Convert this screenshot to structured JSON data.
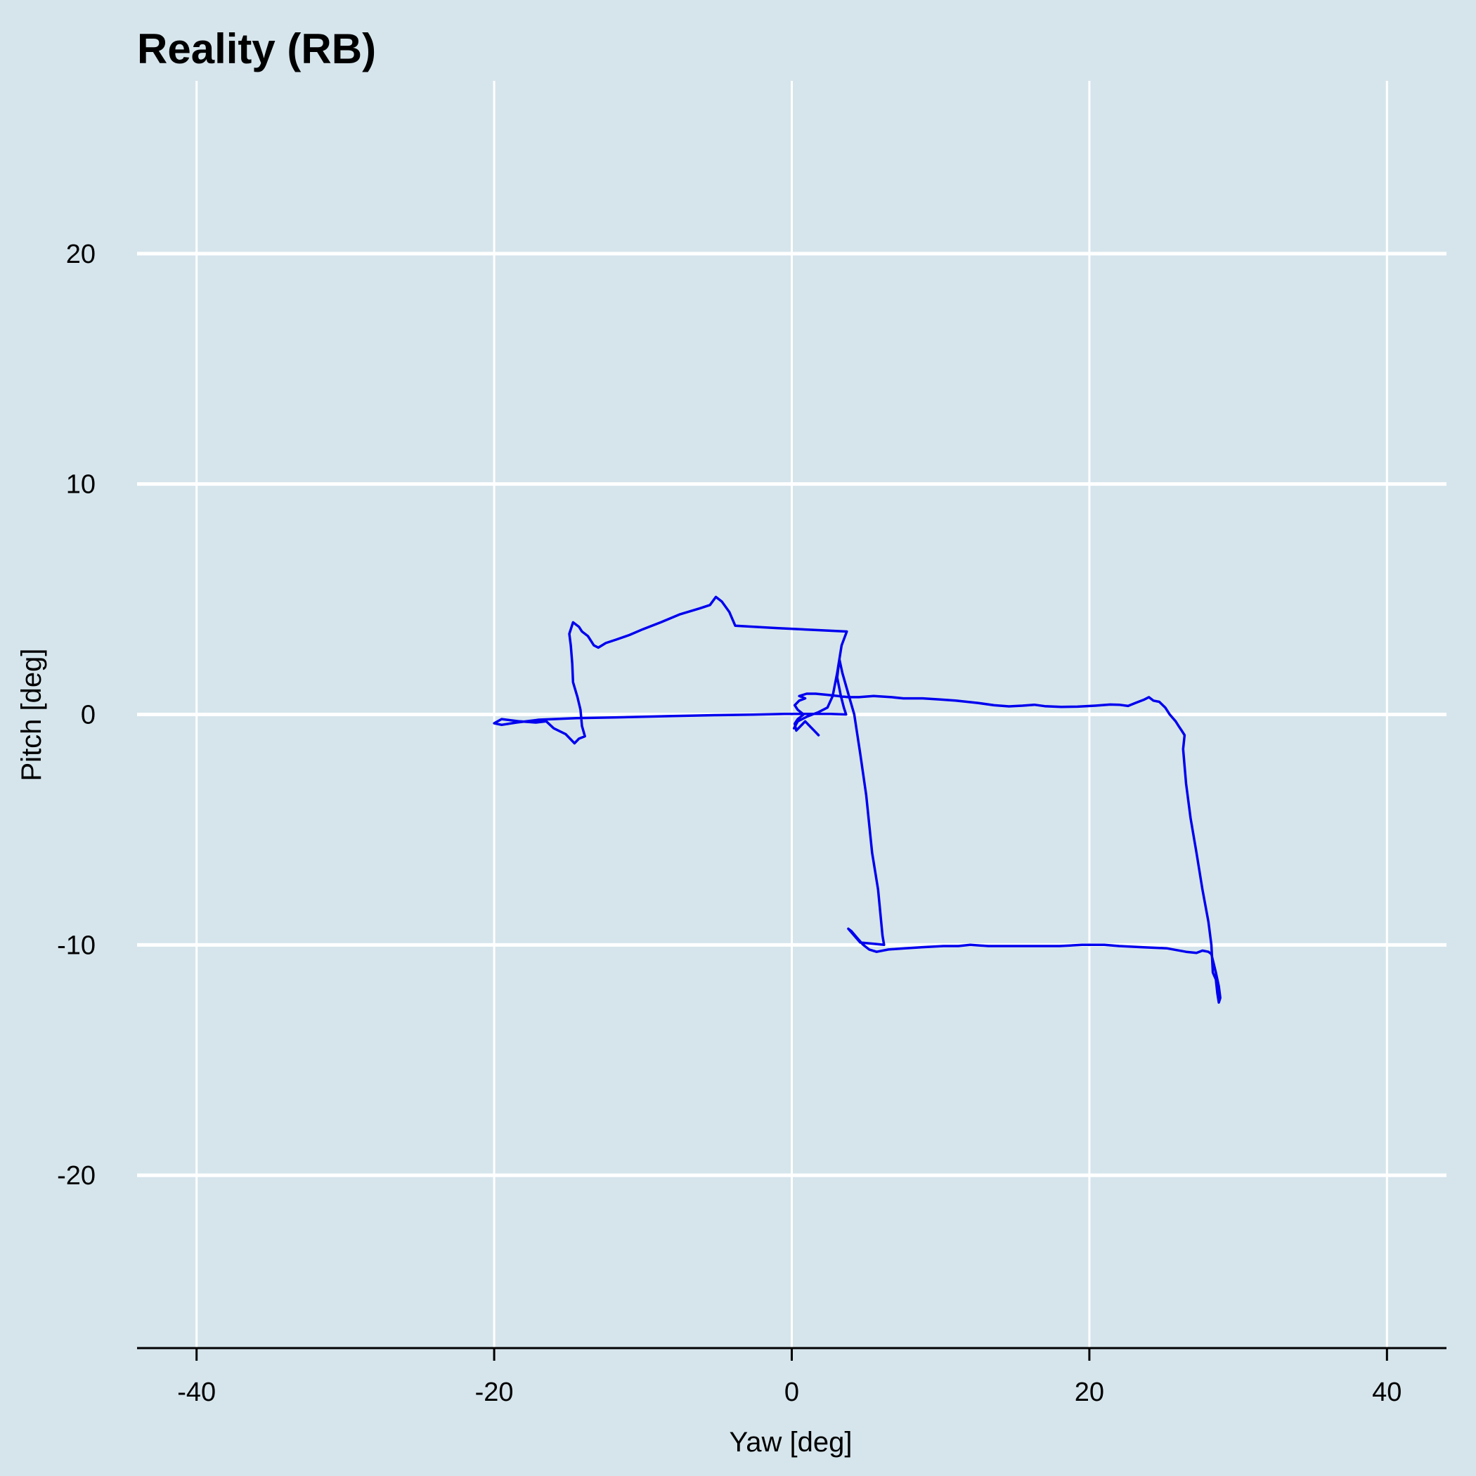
{
  "chart_data": {
    "type": "line",
    "title": "Reality (RB)",
    "xlabel": "Yaw [deg]",
    "ylabel": "Pitch [deg]",
    "xlim": [
      -44,
      44
    ],
    "ylim": [
      -27.5,
      27.5
    ],
    "x_ticks": [
      -40,
      -20,
      0,
      20,
      40
    ],
    "y_ticks": [
      20,
      10,
      0,
      -10,
      -20
    ],
    "grid": true,
    "line_color": "#0000ee",
    "background_color": "#d6e5ec",
    "grid_color": "#ffffff",
    "series": [
      {
        "points": [
          [
            1.8,
            -0.9
          ],
          [
            1.5,
            -0.7
          ],
          [
            1.2,
            -0.5
          ],
          [
            0.9,
            -0.3
          ],
          [
            0.6,
            -0.5
          ],
          [
            0.3,
            -0.7
          ],
          [
            0.2,
            -0.4
          ],
          [
            0.4,
            -0.2
          ],
          [
            0.8,
            0.0
          ],
          [
            0.4,
            0.2
          ],
          [
            0.2,
            0.4
          ],
          [
            0.5,
            0.6
          ],
          [
            0.9,
            0.7
          ],
          [
            0.5,
            0.8
          ],
          [
            1.0,
            0.9
          ],
          [
            1.6,
            0.9
          ],
          [
            2.4,
            0.85
          ],
          [
            3.1,
            0.8
          ],
          [
            3.8,
            0.75
          ],
          [
            4.5,
            0.75
          ],
          [
            5.5,
            0.8
          ],
          [
            6.7,
            0.75
          ],
          [
            7.5,
            0.7
          ],
          [
            8.8,
            0.7
          ],
          [
            10.0,
            0.65
          ],
          [
            11.0,
            0.6
          ],
          [
            12.5,
            0.5
          ],
          [
            13.6,
            0.4
          ],
          [
            14.6,
            0.35
          ],
          [
            15.5,
            0.38
          ],
          [
            16.3,
            0.42
          ],
          [
            17.0,
            0.36
          ],
          [
            18.1,
            0.33
          ],
          [
            19.2,
            0.34
          ],
          [
            20.4,
            0.38
          ],
          [
            21.4,
            0.43
          ],
          [
            22.0,
            0.42
          ],
          [
            22.6,
            0.37
          ],
          [
            23.1,
            0.5
          ],
          [
            23.7,
            0.65
          ],
          [
            24.0,
            0.75
          ],
          [
            24.3,
            0.6
          ],
          [
            24.7,
            0.55
          ],
          [
            25.1,
            0.3
          ],
          [
            25.4,
            0.0
          ],
          [
            25.8,
            -0.3
          ],
          [
            26.0,
            -0.5
          ],
          [
            26.2,
            -0.7
          ],
          [
            26.4,
            -0.9
          ],
          [
            26.3,
            -1.5
          ],
          [
            26.5,
            -3.0
          ],
          [
            26.8,
            -4.5
          ],
          [
            27.2,
            -6.0
          ],
          [
            27.6,
            -7.6
          ],
          [
            28.0,
            -9.0
          ],
          [
            28.2,
            -10.0
          ],
          [
            28.3,
            -11.2
          ],
          [
            28.5,
            -11.5
          ],
          [
            28.6,
            -12.1
          ],
          [
            28.7,
            -12.5
          ],
          [
            28.8,
            -12.3
          ],
          [
            28.7,
            -11.8
          ],
          [
            28.5,
            -11.2
          ],
          [
            28.2,
            -10.4
          ],
          [
            28.0,
            -10.3
          ],
          [
            27.6,
            -10.25
          ],
          [
            27.2,
            -10.35
          ],
          [
            26.5,
            -10.3
          ],
          [
            25.2,
            -10.15
          ],
          [
            23.5,
            -10.1
          ],
          [
            22.0,
            -10.05
          ],
          [
            21.0,
            -10.0
          ],
          [
            19.5,
            -10.0
          ],
          [
            18.0,
            -10.05
          ],
          [
            16.5,
            -10.05
          ],
          [
            15.0,
            -10.05
          ],
          [
            13.2,
            -10.05
          ],
          [
            12.0,
            -10.0
          ],
          [
            11.2,
            -10.05
          ],
          [
            10.2,
            -10.05
          ],
          [
            8.8,
            -10.1
          ],
          [
            7.6,
            -10.15
          ],
          [
            6.5,
            -10.2
          ],
          [
            5.7,
            -10.3
          ],
          [
            5.2,
            -10.2
          ],
          [
            4.8,
            -10.0
          ],
          [
            4.4,
            -9.7
          ],
          [
            4.0,
            -9.4
          ],
          [
            3.8,
            -9.3
          ],
          [
            4.6,
            -9.9
          ],
          [
            5.5,
            -9.95
          ],
          [
            6.2,
            -10.0
          ],
          [
            6.1,
            -9.6
          ],
          [
            5.8,
            -7.6
          ],
          [
            5.4,
            -6.0
          ],
          [
            5.0,
            -3.5
          ],
          [
            4.6,
            -1.7
          ],
          [
            4.2,
            0.0
          ],
          [
            3.8,
            0.9
          ],
          [
            3.4,
            1.8
          ],
          [
            3.2,
            2.4
          ],
          [
            3.05,
            1.6
          ],
          [
            3.3,
            0.8
          ],
          [
            3.5,
            0.3
          ],
          [
            3.65,
            0.0
          ],
          [
            2.6,
            0.02
          ],
          [
            1.5,
            0.02
          ],
          [
            -0.5,
            0.02
          ],
          [
            -2.6,
            -0.01
          ],
          [
            -5.1,
            -0.03
          ],
          [
            -8.0,
            -0.07
          ],
          [
            -12.0,
            -0.13
          ],
          [
            -14.5,
            -0.16
          ],
          [
            -17.0,
            -0.23
          ],
          [
            -18.5,
            -0.35
          ],
          [
            -19.5,
            -0.45
          ],
          [
            -20.0,
            -0.38
          ],
          [
            -19.5,
            -0.2
          ],
          [
            -18.3,
            -0.3
          ],
          [
            -17.2,
            -0.35
          ],
          [
            -16.5,
            -0.3
          ],
          [
            -16.0,
            -0.6
          ],
          [
            -15.2,
            -0.85
          ],
          [
            -14.6,
            -1.25
          ],
          [
            -14.3,
            -1.05
          ],
          [
            -13.9,
            -0.95
          ],
          [
            -14.1,
            -0.5
          ],
          [
            -14.2,
            0.2
          ],
          [
            -14.4,
            0.75
          ],
          [
            -14.7,
            1.4
          ],
          [
            -14.75,
            2.2
          ],
          [
            -14.85,
            3.0
          ],
          [
            -14.95,
            3.5
          ],
          [
            -14.7,
            4.0
          ],
          [
            -14.3,
            3.8
          ],
          [
            -14.1,
            3.6
          ],
          [
            -13.7,
            3.4
          ],
          [
            -13.3,
            3.0
          ],
          [
            -13.0,
            2.9
          ],
          [
            -12.5,
            3.1
          ],
          [
            -11.8,
            3.25
          ],
          [
            -10.9,
            3.45
          ],
          [
            -10.0,
            3.7
          ],
          [
            -8.8,
            4.0
          ],
          [
            -7.5,
            4.35
          ],
          [
            -6.2,
            4.6
          ],
          [
            -5.5,
            4.75
          ],
          [
            -5.1,
            5.1
          ],
          [
            -4.7,
            4.9
          ],
          [
            -4.2,
            4.45
          ],
          [
            -3.8,
            3.85
          ],
          [
            -1.0,
            3.75
          ],
          [
            2.0,
            3.65
          ],
          [
            3.7,
            3.6
          ],
          [
            3.35,
            3.0
          ],
          [
            3.05,
            1.8
          ],
          [
            2.75,
            0.8
          ],
          [
            2.4,
            0.3
          ],
          [
            1.8,
            0.1
          ],
          [
            1.0,
            -0.1
          ],
          [
            0.4,
            -0.3
          ],
          [
            0.15,
            -0.6
          ]
        ]
      }
    ]
  }
}
